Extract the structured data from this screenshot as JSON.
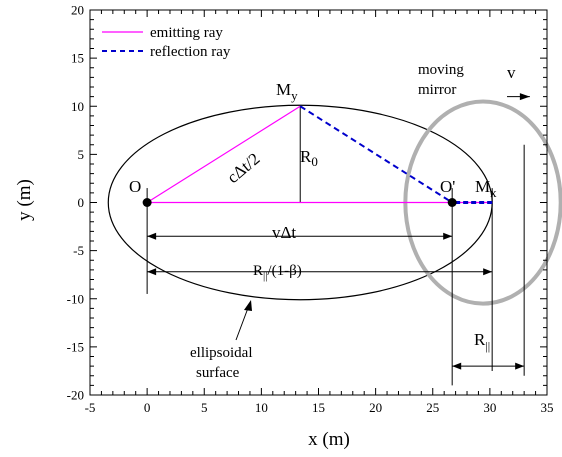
{
  "chart_data": {
    "type": "diagram",
    "xlabel": "x (m)",
    "ylabel": "y (m)",
    "xlim": [
      -5,
      35
    ],
    "ylim": [
      -20,
      20
    ],
    "xticks": [
      -5,
      0,
      5,
      10,
      15,
      20,
      25,
      30,
      35
    ],
    "yticks": [
      -20,
      -15,
      -10,
      -5,
      0,
      5,
      10,
      15,
      20
    ],
    "legend": {
      "placement": "top-left",
      "entries": [
        {
          "label": "emitting ray",
          "color": "#ff00ff",
          "style": "solid"
        },
        {
          "label": "reflection ray",
          "color": "#0000cc",
          "style": "dashed"
        }
      ]
    },
    "points": {
      "O": [
        0,
        0
      ],
      "O_prime": [
        26.7,
        0
      ],
      "M_x": [
        30.2,
        0
      ],
      "M_y": [
        13.4,
        10
      ]
    },
    "ellipse": {
      "center": [
        13.4,
        0
      ],
      "semi_axis_x": 16.8,
      "semi_axis_y": 10.1,
      "color": "#000000"
    },
    "mirror_ellipse": {
      "center": [
        29.4,
        0
      ],
      "semi_axis_x": 6.8,
      "semi_axis_y": 10.5,
      "color": "#b0b0b0"
    },
    "guide_lines": {
      "x_positions": [
        0,
        26.7,
        30.2,
        33
      ],
      "R0_line_x": 13.4
    },
    "arrows": {
      "v_dt": {
        "from": 0,
        "to": 26.7,
        "y": -3.5
      },
      "R_par_over": {
        "from": 0,
        "to": 30.2,
        "y": -7.2
      },
      "R_par": {
        "from": 26.7,
        "to": 33,
        "y": -17
      },
      "velocity": {
        "from": 31.5,
        "to": 33.5,
        "y": 11
      }
    },
    "labels": {
      "O": "O",
      "O_prime": "O'",
      "M_x": "M",
      "M_x_sub": "x",
      "M_y": "M",
      "M_y_sub": "y",
      "R0": "R",
      "R0_sub": "0",
      "c_dt_half": "cΔt/2",
      "v_dt": "vΔt",
      "R_par_over": "R",
      "R_par_over_sub": "||",
      "R_par_over_tail": "/(1-β)",
      "R_par": "R",
      "R_par_sub": "||",
      "moving": "moving",
      "mirror": "mirror",
      "v": "v",
      "ellipsoidal": "ellipsoidal",
      "surface": "surface"
    }
  }
}
